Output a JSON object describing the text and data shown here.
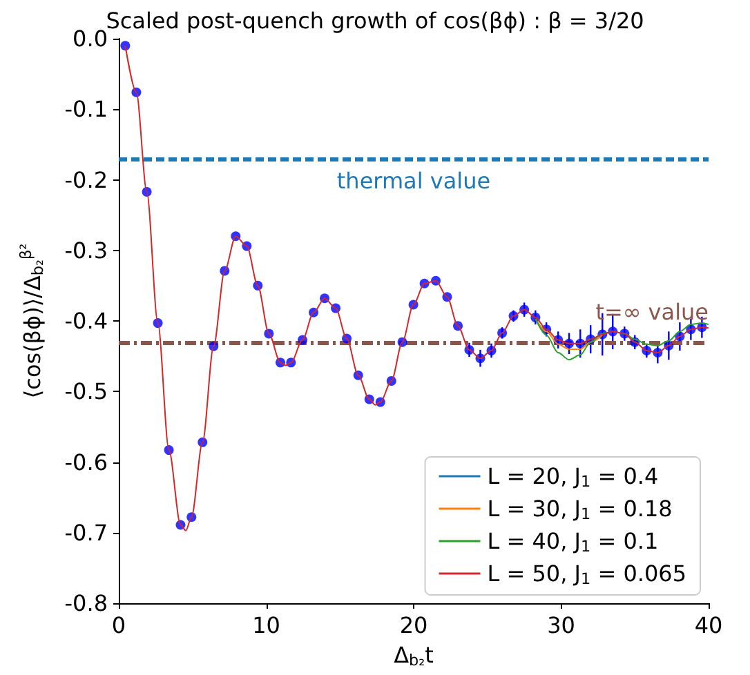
{
  "chart_data": {
    "type": "line",
    "title": "Scaled post-quench growth of cos(βϕ) : β = 3/20",
    "xlabel": "Δ$_{b₂}$t",
    "ylabel": "⟨cos(βϕ)⟩/Δ$_{b₂}$$^{β²}$",
    "xlim": [
      0,
      40
    ],
    "xticks": [
      0,
      10,
      20,
      30,
      40
    ],
    "ylim": [
      -0.8,
      0
    ],
    "yticks": [
      -0.8,
      -0.7,
      -0.6,
      -0.5,
      -0.4,
      -0.3,
      -0.2,
      -0.1,
      {
        "value": 0,
        "label": "0.0"
      }
    ],
    "grid": false,
    "legend": "bottom right",
    "ref_lines": [
      {
        "axis": "y",
        "value": -0.17,
        "label": "thermal value",
        "color": "#1f77b4",
        "line_style": "dashed"
      },
      {
        "axis": "y",
        "value": -0.43,
        "label": "t=∞ value",
        "color": "#8c564b",
        "line_style": "dashdot"
      }
    ],
    "series": [
      {
        "name": "L = 20, J$_{1}$ = 0.4",
        "color": "#1f77b4",
        "marker": "none"
      },
      {
        "name": "L = 30, J$_{1}$ = 0.18",
        "color": "#ff7f0e",
        "marker": "none",
        "x": [
          28.26,
          29.0,
          29.8,
          30.54,
          31.3,
          32.0,
          32.8
        ],
        "values": [
          -0.397,
          -0.415,
          -0.433,
          -0.44,
          -0.44,
          -0.43,
          -0.42
        ]
      },
      {
        "name": "L = 40, J$_{1}$ = 0.1",
        "color": "#2ca02c",
        "marker": "none",
        "x": [
          28.26,
          29.0,
          29.8,
          30.54,
          31.3,
          32.0,
          32.8,
          33.5,
          34.3,
          35.0,
          35.8,
          36.55,
          37.3,
          38.05,
          38.8,
          39.55,
          40
        ],
        "values": [
          -0.397,
          -0.42,
          -0.445,
          -0.455,
          -0.448,
          -0.43,
          -0.418,
          -0.415,
          -0.418,
          -0.426,
          -0.433,
          -0.435,
          -0.428,
          -0.415,
          -0.405,
          -0.403,
          -0.405
        ]
      },
      {
        "name": "L = 50, J$_{1}$ = 0.065",
        "color": "#d62728",
        "marker": "none",
        "x": [
          0.44,
          1.19,
          1.9,
          2.65,
          3.4,
          4.19,
          4.55,
          4.93,
          5.68,
          6.43,
          7.18,
          7.93,
          8.68,
          9.43,
          10.18,
          10.96,
          11.3,
          11.68,
          12.46,
          13.21,
          13.96,
          14.71,
          15.46,
          16.24,
          16.99,
          17.4,
          17.74,
          18.49,
          19.23,
          19.98,
          20.73,
          21.5,
          22.27,
          23.0,
          23.77,
          24.52,
          25.27,
          26.0,
          26.77,
          27.5,
          28.26,
          29.0,
          29.8,
          30.54,
          31.3,
          32.0,
          32.8,
          33.5,
          34.3,
          35.0,
          35.8,
          36.55,
          37.3,
          38.05,
          38.8,
          39.55,
          40
        ],
        "values": [
          -0.01,
          -0.076,
          -0.217,
          -0.403,
          -0.583,
          -0.689,
          -0.697,
          -0.678,
          -0.572,
          -0.436,
          -0.329,
          -0.28,
          -0.294,
          -0.35,
          -0.418,
          -0.459,
          -0.463,
          -0.459,
          -0.427,
          -0.388,
          -0.368,
          -0.382,
          -0.425,
          -0.477,
          -0.511,
          -0.519,
          -0.515,
          -0.485,
          -0.43,
          -0.377,
          -0.347,
          -0.343,
          -0.366,
          -0.407,
          -0.441,
          -0.453,
          -0.442,
          -0.417,
          -0.393,
          -0.384,
          -0.395,
          -0.412,
          -0.427,
          -0.432,
          -0.432,
          -0.426,
          -0.419,
          -0.415,
          -0.418,
          -0.43,
          -0.442,
          -0.445,
          -0.435,
          -0.422,
          -0.412,
          -0.409,
          -0.41
        ]
      },
      {
        "type": "scatter",
        "color": "#0000ff",
        "marker": "circle",
        "x": [
          0.44,
          1.19,
          1.9,
          2.65,
          3.4,
          4.19,
          4.93,
          5.68,
          6.43,
          7.18,
          7.93,
          8.68,
          9.43,
          10.18,
          10.96,
          11.68,
          12.46,
          13.21,
          13.96,
          14.71,
          15.46,
          16.24,
          16.99,
          17.74,
          18.49,
          19.23,
          19.98,
          20.73,
          21.5,
          22.27,
          23.0,
          23.77,
          24.52,
          25.27,
          26.0,
          26.77,
          27.5,
          28.26,
          29.0,
          29.8,
          30.54,
          31.3,
          32.0,
          32.8,
          33.5,
          34.3,
          35.0,
          35.8,
          36.55,
          37.3,
          38.05,
          38.8,
          39.55
        ],
        "values": [
          -0.01,
          -0.076,
          -0.217,
          -0.403,
          -0.583,
          -0.689,
          -0.678,
          -0.572,
          -0.436,
          -0.329,
          -0.28,
          -0.294,
          -0.35,
          -0.418,
          -0.459,
          -0.459,
          -0.427,
          -0.388,
          -0.368,
          -0.382,
          -0.425,
          -0.477,
          -0.511,
          -0.515,
          -0.485,
          -0.43,
          -0.377,
          -0.347,
          -0.343,
          -0.366,
          -0.407,
          -0.441,
          -0.453,
          -0.442,
          -0.417,
          -0.393,
          -0.384,
          -0.395,
          -0.412,
          -0.427,
          -0.432,
          -0.432,
          -0.426,
          -0.419,
          -0.415,
          -0.418,
          -0.43,
          -0.442,
          -0.445,
          -0.435,
          -0.422,
          -0.412,
          -0.409
        ],
        "errors": [
          null,
          null,
          null,
          null,
          null,
          null,
          null,
          null,
          null,
          null,
          null,
          null,
          null,
          null,
          null,
          null,
          null,
          null,
          null,
          null,
          null,
          null,
          null,
          null,
          null,
          null,
          null,
          null,
          null,
          null,
          null,
          0.01,
          0.012,
          0.01,
          0.008,
          0.008,
          0.01,
          0.01,
          0.01,
          0.012,
          0.015,
          0.02,
          0.02,
          0.03,
          0.025,
          0.01,
          0.01,
          0.01,
          0.015,
          0.02,
          0.02,
          0.015,
          0.015
        ]
      }
    ]
  }
}
